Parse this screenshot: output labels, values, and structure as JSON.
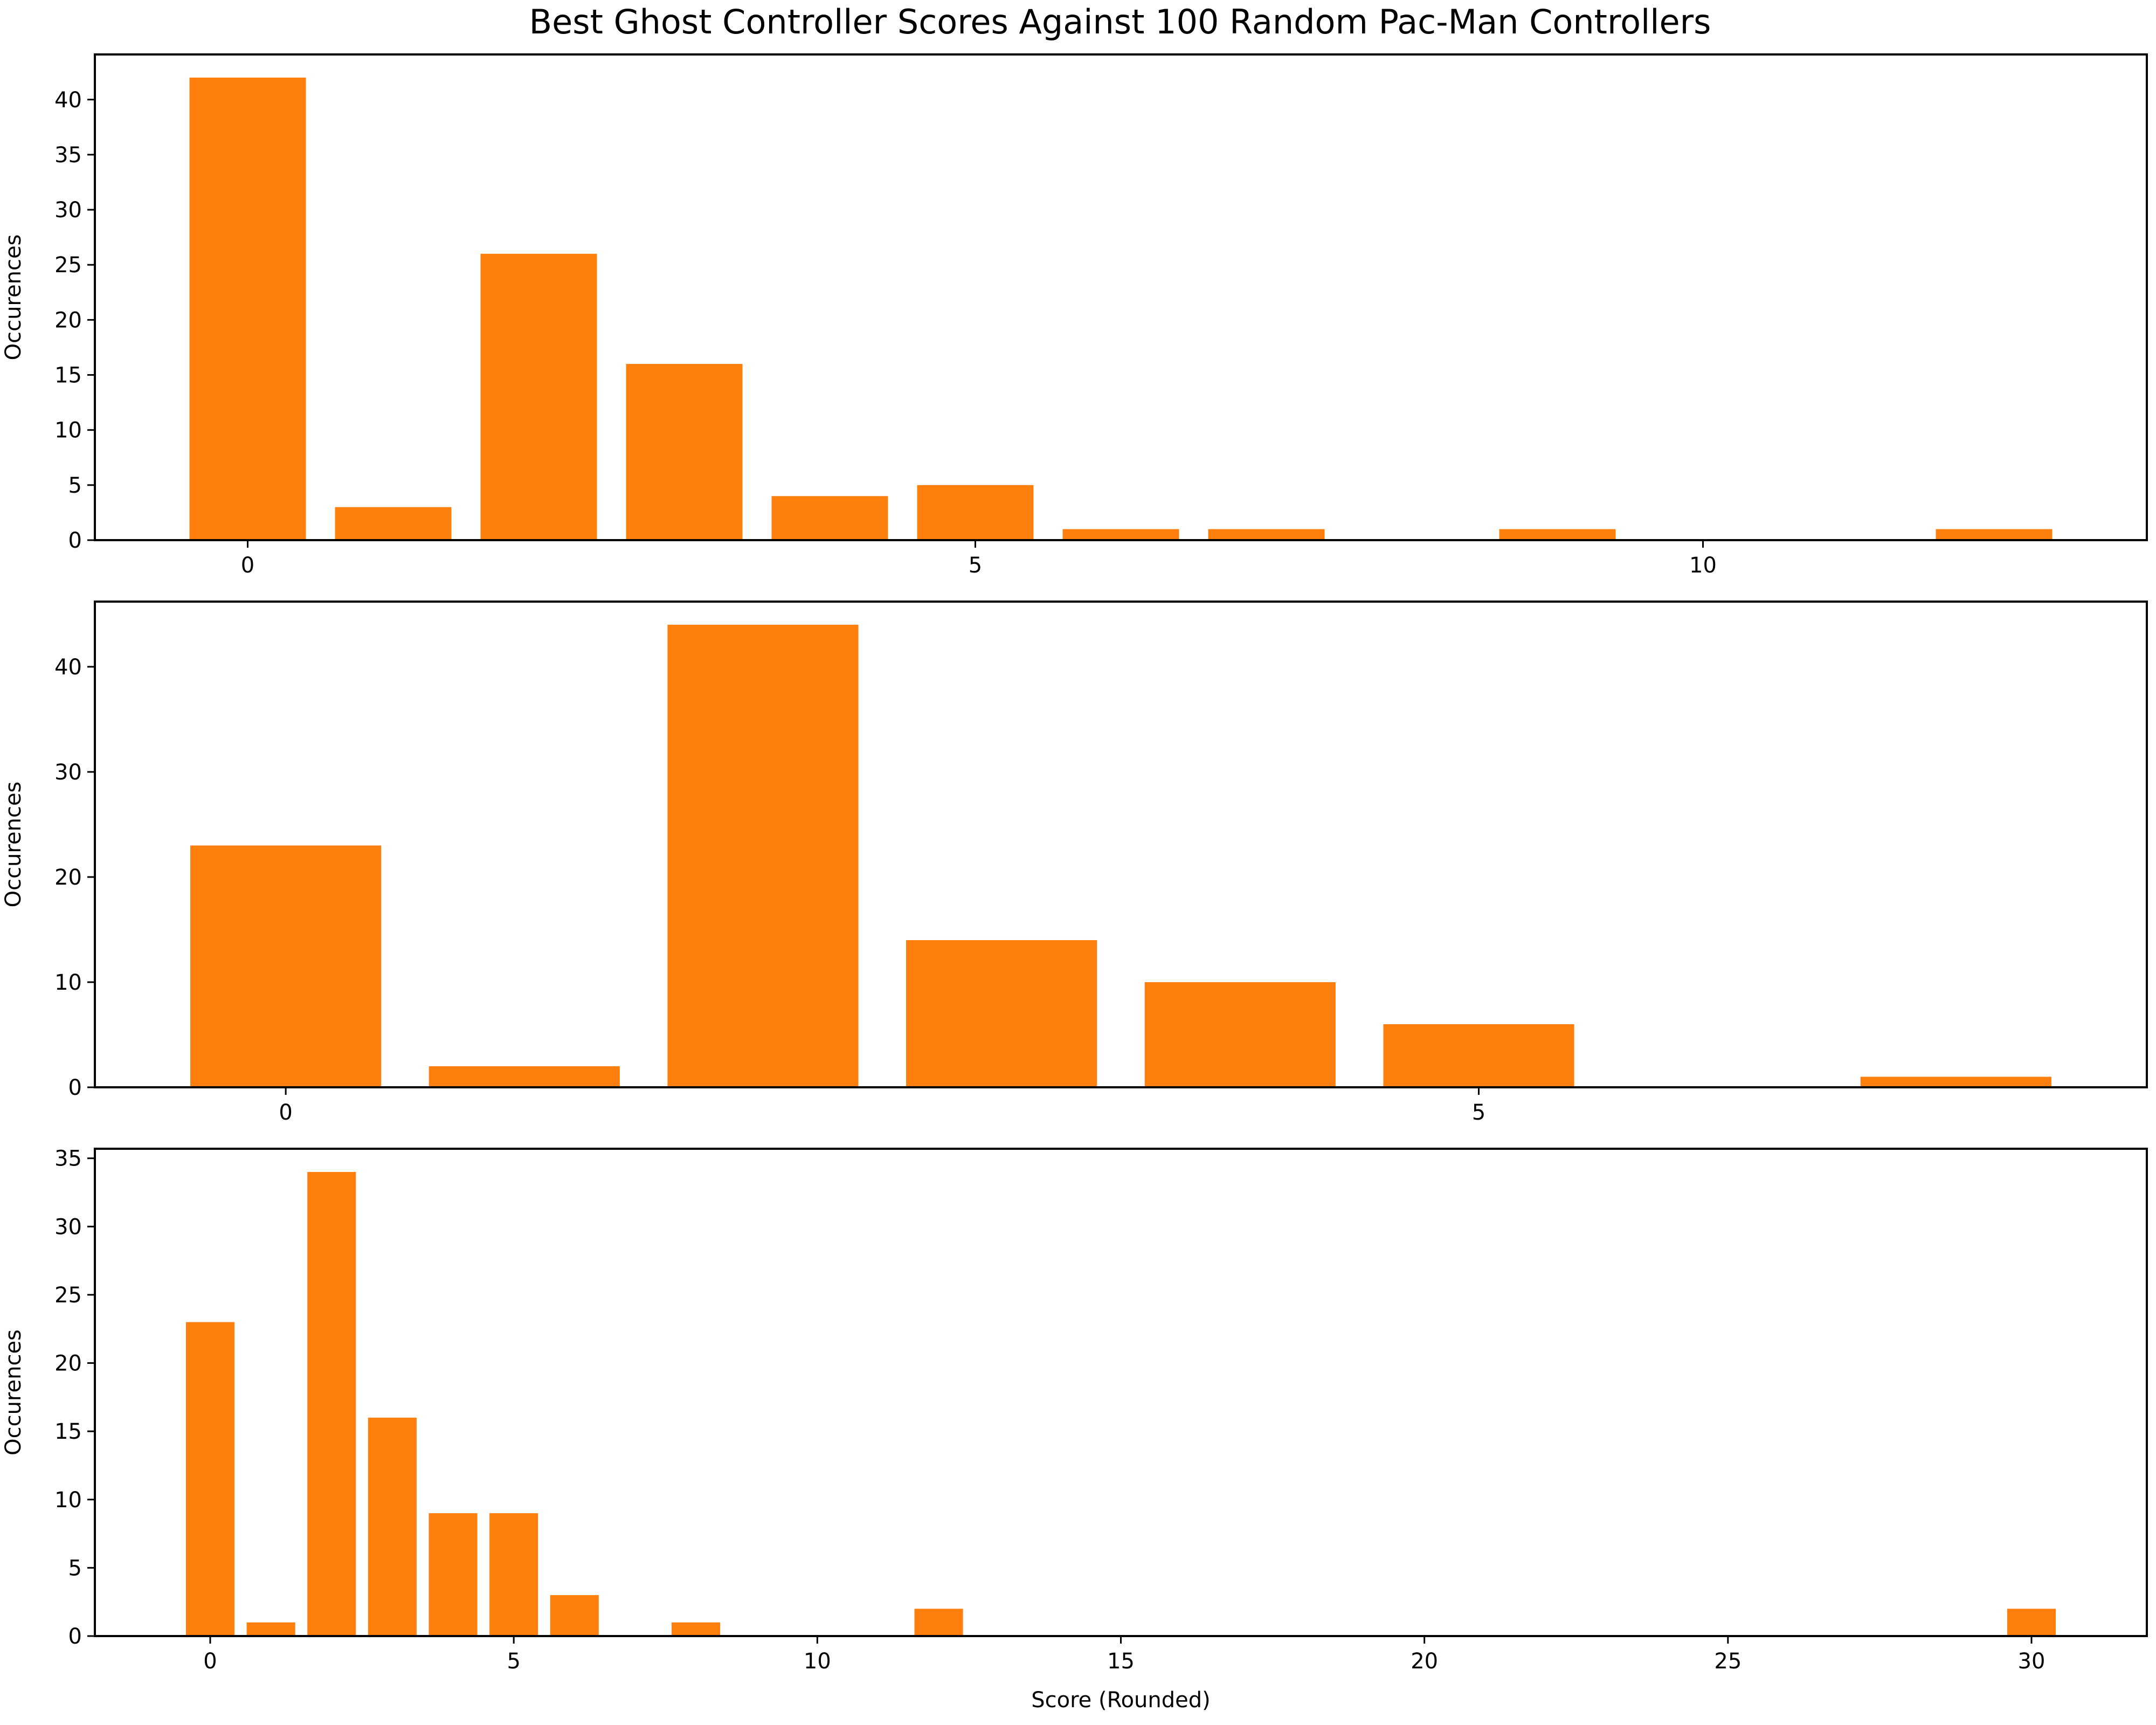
{
  "figure": {
    "title": "Best Ghost Controller Scores Against 100 Random Pac-Man Controllers"
  },
  "colors": {
    "bar": "#ff7f0e",
    "axis": "#000000",
    "background": "#ffffff"
  },
  "chart_data": [
    {
      "type": "bar",
      "xlabel": "",
      "ylabel": "Occurences",
      "xlim": [
        -1.05,
        13.05
      ],
      "ylim": [
        0,
        44.1
      ],
      "xticks": [
        0,
        5,
        10
      ],
      "yticks": [
        0,
        5,
        10,
        15,
        20,
        25,
        30,
        35,
        40
      ],
      "x": [
        0,
        1,
        2,
        3,
        4,
        5,
        6,
        7,
        9,
        12
      ],
      "values": [
        42,
        3,
        26,
        16,
        4,
        5,
        1,
        1,
        1,
        1
      ],
      "grid": false
    },
    {
      "type": "bar",
      "xlabel": "",
      "ylabel": "Occurences",
      "xlim": [
        -0.8,
        7.8
      ],
      "ylim": [
        0,
        46.2
      ],
      "xticks": [
        0,
        5
      ],
      "yticks": [
        0,
        10,
        20,
        30,
        40
      ],
      "x": [
        0,
        1,
        2,
        3,
        4,
        5,
        7
      ],
      "values": [
        23,
        2,
        44,
        14,
        10,
        6,
        1
      ],
      "grid": false
    },
    {
      "type": "bar",
      "xlabel": "Score (Rounded)",
      "ylabel": "Occurences",
      "xlim": [
        -1.9,
        31.9
      ],
      "ylim": [
        0,
        35.7
      ],
      "xticks": [
        0,
        5,
        10,
        15,
        20,
        25,
        30
      ],
      "yticks": [
        0,
        5,
        10,
        15,
        20,
        25,
        30,
        35
      ],
      "x": [
        0,
        1,
        2,
        3,
        4,
        5,
        6,
        8,
        12,
        30
      ],
      "values": [
        23,
        1,
        34,
        16,
        9,
        9,
        3,
        1,
        2,
        2
      ],
      "grid": false
    }
  ]
}
